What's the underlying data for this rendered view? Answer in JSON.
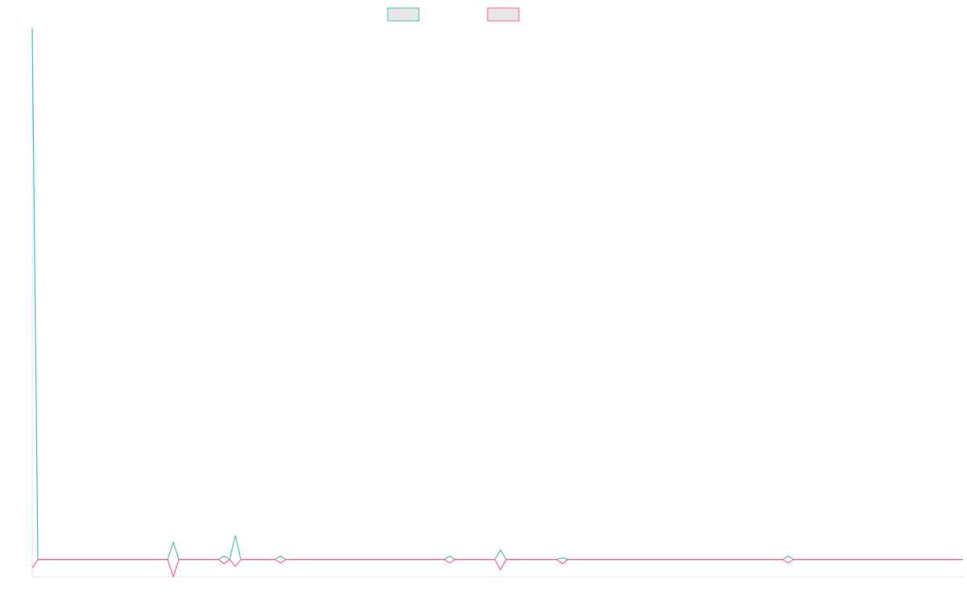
{
  "chart_data": {
    "type": "line",
    "x": [
      0,
      1,
      24,
      25,
      26,
      33,
      34,
      35,
      36,
      37,
      43,
      44,
      45,
      73,
      74,
      75,
      82,
      83,
      84,
      93,
      94,
      95,
      133,
      134,
      135,
      165
    ],
    "xlim": [
      0,
      165
    ],
    "ylim": [
      -1,
      31
    ],
    "series": [
      {
        "color": "#4bc0c0",
        "values": [
          31,
          0,
          0,
          1,
          0,
          0,
          0.2,
          0,
          1.4,
          0,
          0,
          0.2,
          0,
          0,
          0.2,
          0,
          0,
          0.55,
          0,
          0,
          0.1,
          0,
          0,
          0.2,
          0,
          0
        ]
      },
      {
        "color": "#ff6384",
        "values": [
          -0.5,
          0,
          0,
          -1,
          0,
          0,
          -0.25,
          0,
          -0.4,
          0,
          0,
          -0.2,
          0,
          0,
          -0.2,
          0,
          0,
          -0.6,
          0,
          0,
          -0.25,
          0,
          0,
          -0.2,
          0,
          0
        ]
      }
    ]
  }
}
